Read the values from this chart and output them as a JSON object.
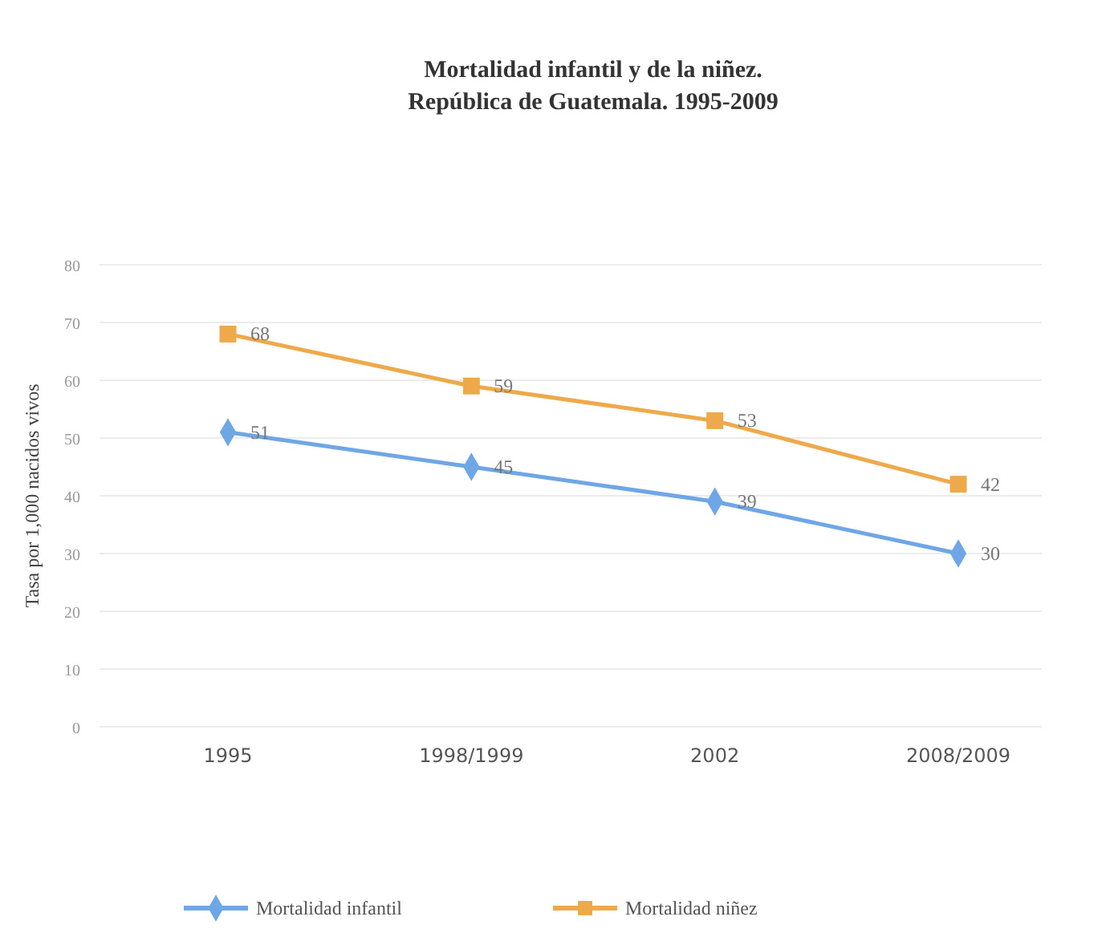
{
  "chart_data": {
    "type": "line",
    "title": "Mortalidad infantil y de la niñez.\nRepública de Guatemala. 1995-2009",
    "ylabel": "Tasa por 1,000 nacidos vivos",
    "categories": [
      "1995",
      "1998/1999",
      "2002",
      "2008/2009"
    ],
    "series": [
      {
        "name": "Mortalidad infantil",
        "color": "#6ea6e6",
        "values": [
          51,
          45,
          39,
          30
        ],
        "marker": "diamond"
      },
      {
        "name": "Mortalidad niñez",
        "color": "#eda94a",
        "values": [
          68,
          59,
          53,
          42
        ],
        "marker": "square"
      }
    ],
    "ylim": [
      0,
      80
    ],
    "yticks": [
      0,
      10,
      20,
      30,
      40,
      50,
      60,
      70,
      80
    ],
    "grid": "y",
    "legend": "bottom",
    "data_labels": true
  }
}
